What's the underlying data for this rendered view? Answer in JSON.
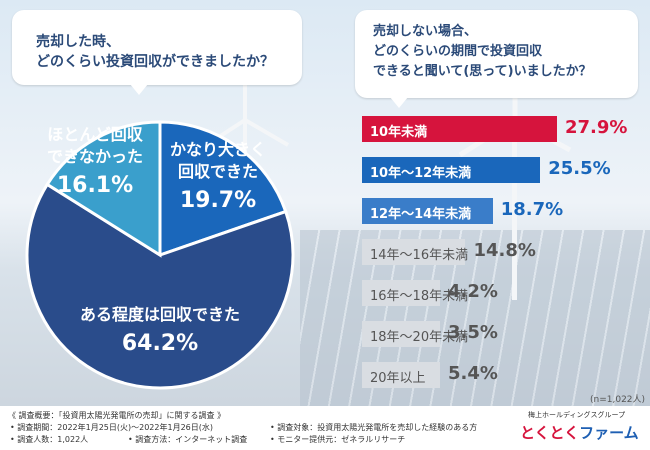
{
  "question_left": [
    "売却した時、",
    "どのくらい投資回収ができましたか？"
  ],
  "question_right": [
    "売却しない場合、",
    "どのくらいの期間で投資回収",
    "できると聞いて(思って)いましたか？"
  ],
  "colors": {
    "pie_light": "#3a9fcc",
    "pie_mid": "#1a67bb",
    "pie_dark": "#2a4c8b",
    "bar_red": "#d6143d",
    "bar_blue": "#1a67bb",
    "bar_blue2": "#3a7dc9",
    "bar_gray": "#d9dde2"
  },
  "chart_data": [
    {
      "type": "pie",
      "title": "売却した時、どのくらい投資回収ができましたか？",
      "slices": [
        {
          "label": [
            "かなり大きく",
            "回収できた"
          ],
          "value": 19.7,
          "display": "19.7%"
        },
        {
          "label": [
            "ある程度は回収できた"
          ],
          "value": 64.2,
          "display": "64.2%"
        },
        {
          "label": [
            "ほとんど回収",
            "できなかった"
          ],
          "value": 16.1,
          "display": "16.1%"
        }
      ]
    },
    {
      "type": "bar",
      "title": "売却しない場合、どのくらいの期間で投資回収できると聞いて(思って)いましたか？",
      "categories": [
        "10年未満",
        "10年～12年未満",
        "12年～14年未満",
        "14年～16年未満",
        "16年～18年未満",
        "18年～20年未満",
        "20年以上"
      ],
      "values": [
        27.9,
        25.5,
        18.7,
        14.8,
        4.2,
        3.5,
        5.4
      ],
      "value_labels": [
        "27.9%",
        "25.5%",
        "18.7%",
        "14.8%",
        "4.2%",
        "3.5%",
        "5.4%"
      ],
      "n_label": "(n=1,022人)"
    }
  ],
  "footer": {
    "title": "《 調査概要：「投資用太陽光発電所の売却」に関する調査 》",
    "period": "• 調査期間：2022年1月25日(火)～2022年1月26日(水)",
    "method": "• 調査方法：インターネット調査",
    "count": "• 調査人数：1,022人",
    "target": "• 調査対象：投資用太陽光発電所を売却した経験のある方",
    "provider": "• モニター提供元：ゼネラルリサーチ",
    "logo_sub": "梅上ホールディングスグループ",
    "logo_a": "とくとく",
    "logo_b": "ファーム"
  }
}
